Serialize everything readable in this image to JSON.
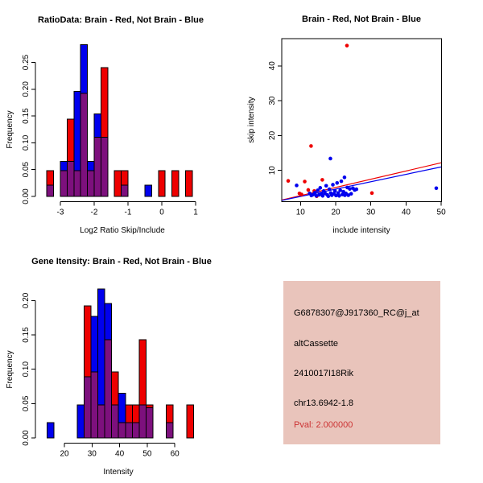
{
  "colors": {
    "red": "#EE0000",
    "blue": "#0000EE",
    "overlap": "#7D107D",
    "axis": "#000000",
    "background": "#FFFFFF",
    "info_box_bg": "#E9C4BB",
    "pval": "#CC3333"
  },
  "chart_data": [
    {
      "type": "bar",
      "id": "ratio-histogram",
      "title": "RatioData: Brain - Red, Not Brain - Blue",
      "xlabel": "Log2 Ratio Skip/Include",
      "ylabel": "Frequency",
      "x_ticks": [
        -3,
        -2,
        -1,
        0,
        1
      ],
      "y_ticks": [
        "0.00",
        "0.05",
        "0.10",
        "0.15",
        "0.20",
        "0.25"
      ],
      "xlim": [
        -3.5,
        1.2
      ],
      "ylim": [
        0,
        0.295
      ],
      "grid": false,
      "legend": "red = Brain, blue = Not Brain (encoded in title)",
      "bin_width": 0.2,
      "bars": [
        {
          "x0": -3.4,
          "red": 0.048,
          "blue": 0.021
        },
        {
          "x0": -3.0,
          "red": 0.048,
          "blue": 0.065
        },
        {
          "x0": -2.8,
          "red": 0.144,
          "blue": 0.065
        },
        {
          "x0": -2.6,
          "red": 0.048,
          "blue": 0.196
        },
        {
          "x0": -2.4,
          "red": 0.192,
          "blue": 0.283
        },
        {
          "x0": -2.2,
          "red": 0.048,
          "blue": 0.065
        },
        {
          "x0": -2.0,
          "red": 0.11,
          "blue": 0.154
        },
        {
          "x0": -1.8,
          "red": 0.24,
          "blue": 0.11
        },
        {
          "x0": -1.4,
          "red": 0.048,
          "blue": 0
        },
        {
          "x0": -1.2,
          "red": 0.048,
          "blue": 0.021
        },
        {
          "x0": -0.5,
          "red": 0,
          "blue": 0.021
        },
        {
          "x0": -0.1,
          "red": 0.048,
          "blue": 0
        },
        {
          "x0": 0.3,
          "red": 0.048,
          "blue": 0
        },
        {
          "x0": 0.7,
          "red": 0.048,
          "blue": 0
        }
      ]
    },
    {
      "type": "scatter",
      "id": "intensity-scatter",
      "title": "Brain - Red, Not Brain - Blue",
      "xlabel": "include intensity",
      "ylabel": "skip intensity",
      "x_ticks": [
        10,
        20,
        30,
        40,
        50
      ],
      "y_ticks": [
        10,
        20,
        30,
        40
      ],
      "xlim": [
        4.7,
        50.1
      ],
      "ylim": [
        1.1,
        47.8
      ],
      "grid": false,
      "series": [
        {
          "name": "Brain",
          "color": "red",
          "points": [
            [
              6.5,
              7.0
            ],
            [
              9.7,
              3.4
            ],
            [
              10.3,
              3.1
            ],
            [
              11.2,
              6.8
            ],
            [
              12.2,
              4.4
            ],
            [
              13.0,
              17.0
            ],
            [
              13.9,
              4.1
            ],
            [
              14.6,
              2.6
            ],
            [
              16.2,
              7.3
            ],
            [
              23.2,
              45.8
            ],
            [
              30.3,
              3.5
            ]
          ]
        },
        {
          "name": "Not Brain",
          "color": "blue",
          "points": [
            [
              8.9,
              5.7
            ],
            [
              12.6,
              3.4
            ],
            [
              13.1,
              2.8
            ],
            [
              13.6,
              3.1
            ],
            [
              14.1,
              3.6
            ],
            [
              14.5,
              2.7
            ],
            [
              14.9,
              4.3
            ],
            [
              15.3,
              3.0
            ],
            [
              15.6,
              5.0
            ],
            [
              16.0,
              3.3
            ],
            [
              16.3,
              2.7
            ],
            [
              16.6,
              4.1
            ],
            [
              17.0,
              3.4
            ],
            [
              17.3,
              5.6
            ],
            [
              17.6,
              3.0
            ],
            [
              17.9,
              2.6
            ],
            [
              18.2,
              4.6
            ],
            [
              18.5,
              13.4
            ],
            [
              18.6,
              3.5
            ],
            [
              18.9,
              2.9
            ],
            [
              19.2,
              5.9
            ],
            [
              19.5,
              3.3
            ],
            [
              19.8,
              4.1
            ],
            [
              20.1,
              2.8
            ],
            [
              20.4,
              6.4
            ],
            [
              20.7,
              3.5
            ],
            [
              21.0,
              2.7
            ],
            [
              21.3,
              4.3
            ],
            [
              21.6,
              6.9
            ],
            [
              21.9,
              3.1
            ],
            [
              22.2,
              3.9
            ],
            [
              22.5,
              8.0
            ],
            [
              22.6,
              2.9
            ],
            [
              22.9,
              3.4
            ],
            [
              23.3,
              5.1
            ],
            [
              23.6,
              2.9
            ],
            [
              24.0,
              4.7
            ],
            [
              24.4,
              3.3
            ],
            [
              24.9,
              4.9
            ],
            [
              25.4,
              4.4
            ],
            [
              25.9,
              4.6
            ],
            [
              48.6,
              4.9
            ]
          ]
        }
      ],
      "fit_lines": [
        {
          "color": "red",
          "x": [
            4.7,
            50.0
          ],
          "y": [
            1.5,
            12.2
          ]
        },
        {
          "color": "blue",
          "x": [
            4.7,
            50.0
          ],
          "y": [
            1.4,
            11.0
          ]
        }
      ]
    },
    {
      "type": "bar",
      "id": "gene-intensity-histogram",
      "title": "Gene Itensity: Brain - Red, Not Brain - Blue",
      "xlabel": "Intensity",
      "ylabel": "Frequency",
      "x_ticks": [
        20,
        30,
        40,
        50,
        60
      ],
      "y_ticks": [
        "0.00",
        "0.05",
        "0.10",
        "0.15",
        "0.20"
      ],
      "xlim": [
        12.7,
        68.7
      ],
      "ylim": [
        0,
        0.23
      ],
      "grid": false,
      "bin_width": 2.5,
      "bars": [
        {
          "x0": 13.7,
          "red": 0,
          "blue": 0.022
        },
        {
          "x0": 24.6,
          "red": 0,
          "blue": 0.048
        },
        {
          "x0": 27.1,
          "red": 0.192,
          "blue": 0.089
        },
        {
          "x0": 29.6,
          "red": 0.096,
          "blue": 0.177
        },
        {
          "x0": 32.1,
          "red": 0.048,
          "blue": 0.217
        },
        {
          "x0": 34.6,
          "red": 0.143,
          "blue": 0.196
        },
        {
          "x0": 37.1,
          "red": 0.096,
          "blue": 0.048
        },
        {
          "x0": 39.6,
          "red": 0.022,
          "blue": 0.065
        },
        {
          "x0": 42.1,
          "red": 0.048,
          "blue": 0.022
        },
        {
          "x0": 44.6,
          "red": 0.048,
          "blue": 0.022
        },
        {
          "x0": 47.1,
          "red": 0.143,
          "blue": 0.048
        },
        {
          "x0": 49.6,
          "red": 0.048,
          "blue": 0.044
        },
        {
          "x0": 56.9,
          "red": 0.048,
          "blue": 0.022
        },
        {
          "x0": 64.3,
          "red": 0.048,
          "blue": 0
        }
      ]
    }
  ],
  "info_box": {
    "probe_id": "G6878307@J917360_RC@j_at",
    "splice_type": "altCassette",
    "gene_name": "2410017I18Rik",
    "location": "chr13.6942-1.8",
    "pval": "Pval: 2.000000"
  }
}
